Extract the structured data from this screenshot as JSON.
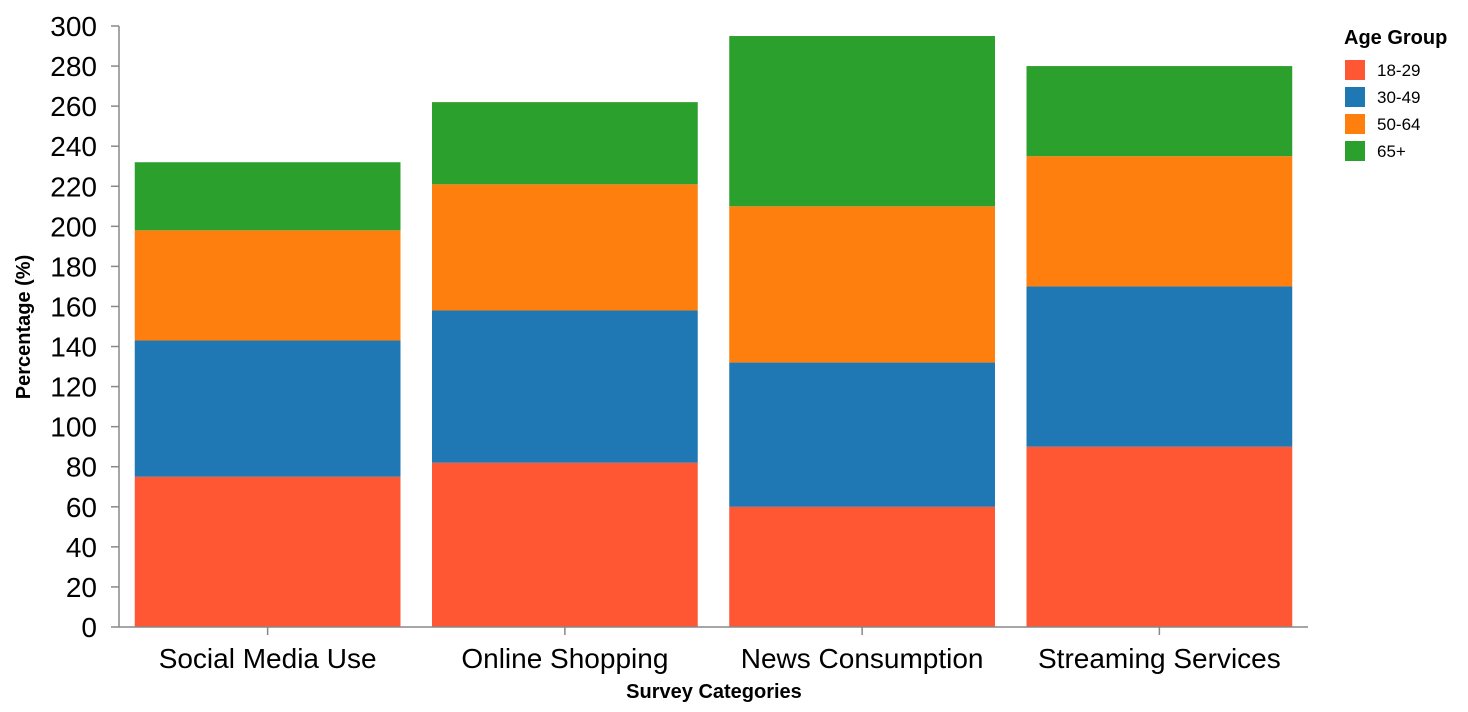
{
  "chart_data": {
    "type": "bar",
    "stacked": true,
    "categories": [
      "Social Media Use",
      "Online Shopping",
      "News Consumption",
      "Streaming Services"
    ],
    "series": [
      {
        "name": "18-29",
        "color": "#ff5733",
        "values": [
          75,
          82,
          60,
          90
        ]
      },
      {
        "name": "30-49",
        "color": "#1f77b4",
        "values": [
          68,
          76,
          72,
          80
        ]
      },
      {
        "name": "50-64",
        "color": "#ff7f0e",
        "values": [
          55,
          63,
          78,
          65
        ]
      },
      {
        "name": "65+",
        "color": "#2ca02c",
        "values": [
          34,
          41,
          85,
          45
        ]
      }
    ],
    "xlabel": "Survey Categories",
    "ylabel": "Percentage (%)",
    "ylim": [
      0,
      300
    ],
    "yticks": [
      0,
      20,
      40,
      60,
      80,
      100,
      120,
      140,
      160,
      180,
      200,
      220,
      240,
      260,
      280,
      300
    ],
    "legend_title": "Age Group",
    "legend_position": "top-right",
    "grid": false
  }
}
